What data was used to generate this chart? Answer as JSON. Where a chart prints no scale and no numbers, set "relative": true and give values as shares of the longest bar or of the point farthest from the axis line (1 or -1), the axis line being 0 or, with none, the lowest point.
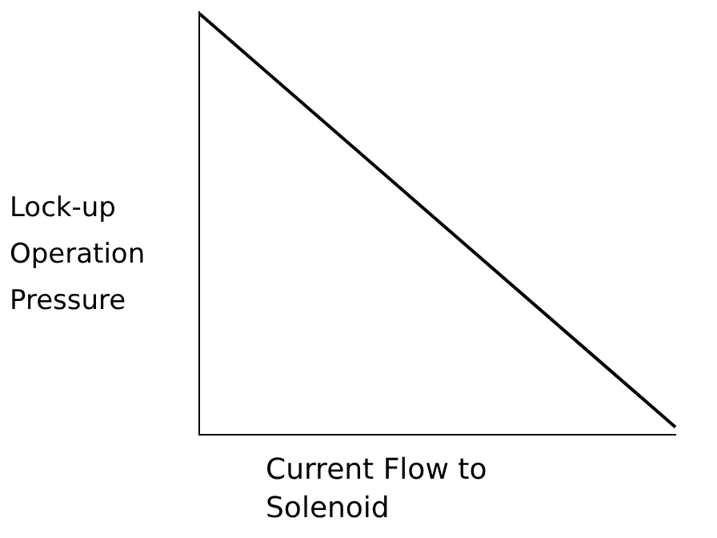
{
  "chart_data": {
    "type": "line",
    "xlabel": "Current Flow to Solenoid",
    "ylabel": "Lock-up Operation Pressure",
    "relative": true,
    "categories": [
      null,
      null
    ],
    "series": [
      {
        "color": "#000000",
        "values": [
          1,
          0.02
        ]
      }
    ],
    "marker": "none",
    "legend": false
  }
}
